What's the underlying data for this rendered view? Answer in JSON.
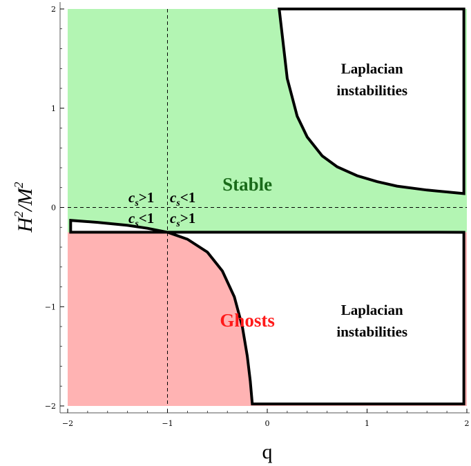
{
  "chart_data": {
    "type": "area",
    "xlabel": "q",
    "ylabel_base": "H",
    "ylabel_exp": "2",
    "ylabel_div": "/M",
    "ylabel_exp2": "2",
    "xlim": [
      -2,
      2
    ],
    "ylim": [
      -2,
      2
    ],
    "xticks": [
      -2,
      -1,
      0,
      1,
      2
    ],
    "yticks": [
      -2,
      -1,
      0,
      1,
      2
    ],
    "xtick_labels": [
      "−2",
      "−1",
      "0",
      "1",
      "2"
    ],
    "ytick_labels": [
      "−2",
      "−1",
      "0",
      "1",
      "2"
    ],
    "colors": {
      "stable": "#b3f5b3",
      "ghosts": "#ffb3b3",
      "boundary": "#000000",
      "stable_text": "#1a6b1a",
      "ghosts_text": "#ff1a1a"
    },
    "stable_region": {
      "q_range": [
        -2,
        2
      ],
      "h2_range": [
        -0.25,
        2
      ]
    },
    "ghost_region": {
      "q_range": [
        -2,
        2
      ],
      "h2_range": [
        -2,
        -0.25
      ]
    },
    "laplacian_upper": {
      "curve": [
        [
          0.12,
          2.0
        ],
        [
          0.2,
          1.3
        ],
        [
          0.3,
          0.92
        ],
        [
          0.4,
          0.71
        ],
        [
          0.55,
          0.52
        ],
        [
          0.7,
          0.41
        ],
        [
          0.9,
          0.32
        ],
        [
          1.1,
          0.26
        ],
        [
          1.3,
          0.215
        ],
        [
          1.6,
          0.175
        ],
        [
          1.97,
          0.14
        ]
      ]
    },
    "laplacian_lower": {
      "curve": [
        [
          -1.0,
          -0.25
        ],
        [
          -0.8,
          -0.32
        ],
        [
          -0.6,
          -0.45
        ],
        [
          -0.45,
          -0.64
        ],
        [
          -0.33,
          -0.9
        ],
        [
          -0.25,
          -1.2
        ],
        [
          -0.2,
          -1.5
        ],
        [
          -0.17,
          -1.75
        ],
        [
          -0.15,
          -1.98
        ]
      ]
    },
    "laplacian_left_wedge": {
      "curve": [
        [
          -1.97,
          -0.25
        ],
        [
          -1.97,
          -0.13
        ],
        [
          -1.7,
          -0.15
        ],
        [
          -1.4,
          -0.18
        ],
        [
          -1.2,
          -0.21
        ],
        [
          -1.0,
          -0.25
        ]
      ]
    },
    "guides": {
      "vertical_q": -1,
      "horizontal_h2": 0
    },
    "annotations": {
      "stable": "Stable",
      "ghosts": "Ghosts",
      "laplacian_top_line1": "Laplacian",
      "laplacian_top_line2": "instabilities",
      "laplacian_bottom_line1": "Laplacian",
      "laplacian_bottom_line2": "instabilities",
      "cs_c": "c",
      "cs_sub": "s",
      "cs_gt": ">1",
      "cs_lt": "<1"
    }
  }
}
